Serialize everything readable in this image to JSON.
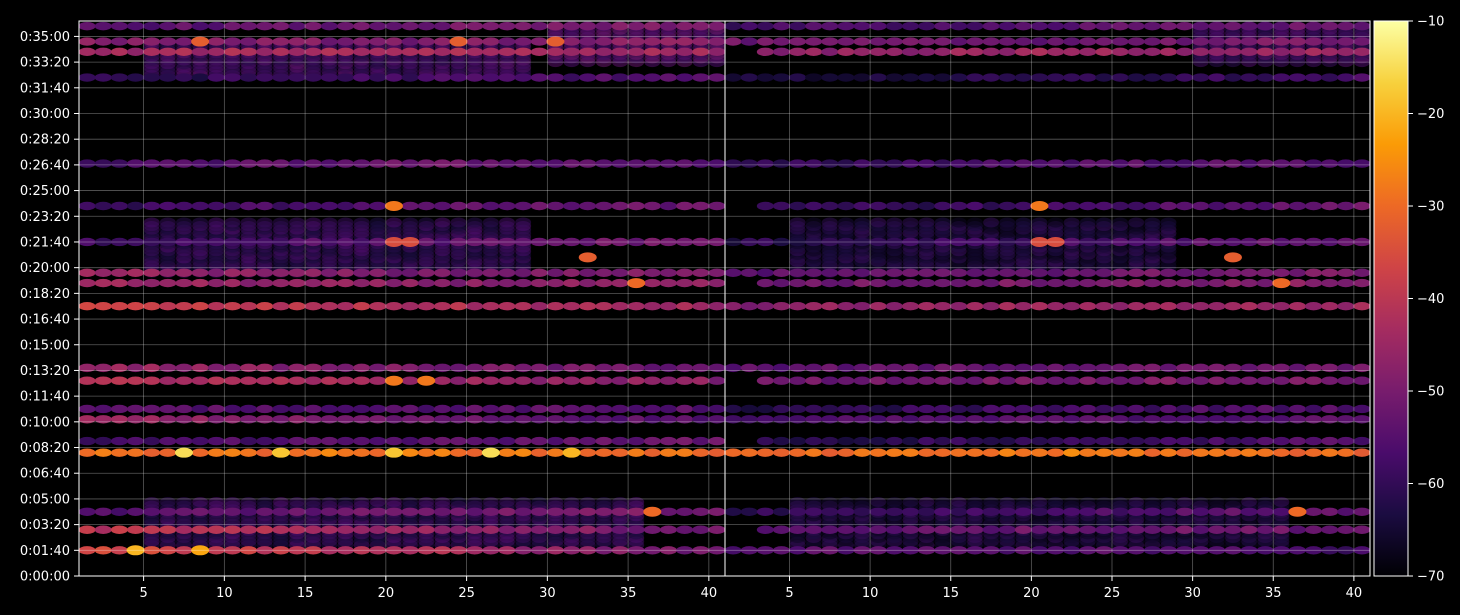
{
  "chart_data": {
    "type": "heatmap",
    "title": "",
    "xlabel": "",
    "ylabel": "",
    "panels": 2,
    "x_range": [
      1,
      40
    ],
    "x_ticks": [
      5,
      10,
      15,
      20,
      25,
      30,
      35,
      40
    ],
    "x_tick_labels_left": [
      "5",
      "10",
      "15",
      "20",
      "25",
      "30",
      "35",
      "40"
    ],
    "x_tick_labels_right": [
      "5",
      "10",
      "15",
      "20",
      "25",
      "30",
      "35",
      "40"
    ],
    "y_range_seconds": [
      0,
      2160
    ],
    "y_tick_labels": [
      "0:00:00",
      "0:01:40",
      "0:03:20",
      "0:05:00",
      "0:06:40",
      "0:08:20",
      "0:10:00",
      "0:11:40",
      "0:13:20",
      "0:15:00",
      "0:16:40",
      "0:18:20",
      "0:20:00",
      "0:21:40",
      "0:23:20",
      "0:25:00",
      "0:26:40",
      "0:28:20",
      "0:30:00",
      "0:31:40",
      "0:33:20",
      "0:35:00"
    ],
    "grid": true,
    "colormap": "inferno",
    "colorbar": {
      "range": [
        -70,
        -10
      ],
      "tick_labels": [
        "−70",
        "−60",
        "−50",
        "−40",
        "−30",
        "−20",
        "−10"
      ],
      "stops": [
        "#000004",
        "#1b0c41",
        "#4a0c6b",
        "#781c6d",
        "#a52c60",
        "#cf4446",
        "#ed6925",
        "#fb9b06",
        "#f7d13d",
        "#fcffa4"
      ]
    },
    "bands": [
      {
        "t_seconds": 100,
        "left": [
          -35,
          -42,
          -52
        ],
        "right": [
          -55,
          -55,
          -58
        ]
      },
      {
        "t_seconds": 180,
        "left": [
          -40,
          -45,
          -52
        ],
        "right": [
          -55,
          -52,
          -52
        ]
      },
      {
        "t_seconds": 250,
        "left": [
          -55,
          -52,
          -50
        ],
        "right": [
          -60,
          -57,
          -53
        ]
      },
      {
        "t_seconds": 480,
        "left": [
          -30,
          -28,
          -30
        ],
        "right": [
          -32,
          -28,
          -30
        ]
      },
      {
        "t_seconds": 525,
        "left": [
          -58,
          -55,
          -52
        ],
        "right": [
          -62,
          -60,
          -55
        ]
      },
      {
        "t_seconds": 610,
        "left": [
          -45,
          -52,
          -55
        ],
        "right": [
          -58,
          -55,
          -55
        ]
      },
      {
        "t_seconds": 650,
        "left": [
          -55,
          -55,
          -55
        ],
        "right": [
          -62,
          -58,
          -55
        ]
      },
      {
        "t_seconds": 760,
        "left": [
          -42,
          -45,
          -48
        ],
        "right": [
          -52,
          -50,
          -50
        ]
      },
      {
        "t_seconds": 810,
        "left": [
          -45,
          -50,
          -52
        ],
        "right": [
          -55,
          -52,
          -52
        ]
      },
      {
        "t_seconds": 1050,
        "left": [
          -38,
          -42,
          -45
        ],
        "right": [
          -48,
          -45,
          -45
        ]
      },
      {
        "t_seconds": 1140,
        "left": [
          -45,
          -48,
          -48
        ],
        "right": [
          -52,
          -50,
          -48
        ]
      },
      {
        "t_seconds": 1180,
        "left": [
          -45,
          -50,
          -50
        ],
        "right": [
          -55,
          -52,
          -50
        ]
      },
      {
        "t_seconds": 1300,
        "left": [
          -58,
          -55,
          -50
        ],
        "right": [
          -62,
          -58,
          -52
        ]
      },
      {
        "t_seconds": 1440,
        "left": [
          -60,
          -55,
          -52
        ],
        "right": [
          -62,
          -58,
          -52
        ]
      },
      {
        "t_seconds": 1605,
        "left": [
          -58,
          -52,
          -55
        ],
        "right": [
          -62,
          -55,
          -55
        ]
      },
      {
        "t_seconds": 1940,
        "left": [
          -62,
          -58,
          -55
        ],
        "right": [
          -65,
          -62,
          -58
        ]
      },
      {
        "t_seconds": 2040,
        "left": [
          -45,
          -42,
          -45
        ],
        "right": [
          -48,
          -45,
          -45
        ]
      },
      {
        "t_seconds": 2080,
        "left": [
          -48,
          -50,
          -48
        ],
        "right": [
          -52,
          -52,
          -50
        ]
      },
      {
        "t_seconds": 2140,
        "left": [
          -55,
          -52,
          -50
        ],
        "right": [
          -58,
          -55,
          -52
        ]
      }
    ],
    "diffuse_regions": [
      {
        "t_range": [
          1950,
          2080
        ],
        "x_range": [
          5,
          28
        ],
        "value": -58,
        "panel": "left"
      },
      {
        "t_range": [
          120,
          300
        ],
        "x_range": [
          5,
          35
        ],
        "value": -60,
        "panel": "both"
      },
      {
        "t_range": [
          1180,
          1380
        ],
        "x_range": [
          5,
          28
        ],
        "value": -60,
        "panel": "both"
      },
      {
        "t_range": [
          2000,
          2140
        ],
        "x_range": [
          30,
          40
        ],
        "value": -55,
        "panel": "both"
      }
    ],
    "hotspots": [
      {
        "t_seconds": 480,
        "x": 7,
        "value": -15,
        "panel": "left"
      },
      {
        "t_seconds": 480,
        "x": 13,
        "value": -18,
        "panel": "left"
      },
      {
        "t_seconds": 480,
        "x": 20,
        "value": -18,
        "panel": "left"
      },
      {
        "t_seconds": 480,
        "x": 26,
        "value": -15,
        "panel": "left"
      },
      {
        "t_seconds": 480,
        "x": 31,
        "value": -20,
        "panel": "left"
      },
      {
        "t_seconds": 100,
        "x": 4,
        "value": -20,
        "panel": "left"
      },
      {
        "t_seconds": 100,
        "x": 8,
        "value": -22,
        "panel": "left"
      },
      {
        "t_seconds": 250,
        "x": 36,
        "value": -30,
        "panel": "both"
      },
      {
        "t_seconds": 1140,
        "x": 35,
        "value": -30,
        "panel": "both"
      },
      {
        "t_seconds": 1300,
        "x": 20,
        "value": -35,
        "panel": "both"
      },
      {
        "t_seconds": 1300,
        "x": 21,
        "value": -35,
        "panel": "both"
      },
      {
        "t_seconds": 1440,
        "x": 20,
        "value": -28,
        "panel": "both"
      },
      {
        "t_seconds": 1240,
        "x": 32,
        "value": -32,
        "panel": "both"
      },
      {
        "t_seconds": 760,
        "x": 20,
        "value": -28,
        "panel": "left"
      },
      {
        "t_seconds": 760,
        "x": 22,
        "value": -28,
        "panel": "left"
      },
      {
        "t_seconds": 2080,
        "x": 8,
        "value": -32,
        "panel": "left"
      },
      {
        "t_seconds": 2080,
        "x": 24,
        "value": -32,
        "panel": "left"
      },
      {
        "t_seconds": 2080,
        "x": 30,
        "value": -32,
        "panel": "left"
      }
    ]
  }
}
